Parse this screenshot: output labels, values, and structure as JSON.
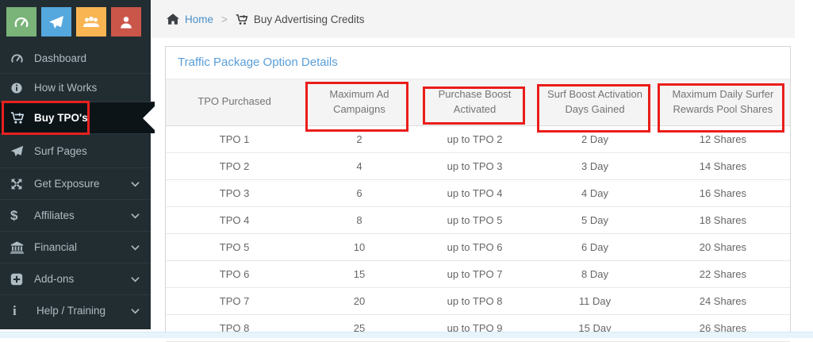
{
  "topbar": {
    "breadcrumb": {
      "home_label": "Home",
      "separator": ">",
      "current_label": "Buy Advertising Credits"
    }
  },
  "quick_icons": [
    {
      "icon": "gauge-icon",
      "color": "#7ab479"
    },
    {
      "icon": "paper-plane-icon",
      "color": "#55a8de"
    },
    {
      "icon": "users-icon",
      "color": "#f8b552"
    },
    {
      "icon": "user-icon",
      "color": "#ca564a"
    }
  ],
  "sidebar": {
    "items": [
      {
        "label": "Dashboard",
        "icon": "gauge-icon",
        "active": false,
        "chevron": false
      },
      {
        "label": "How it Works",
        "icon": "info-circle-icon",
        "active": false,
        "chevron": false
      },
      {
        "label": "Buy TPO's",
        "icon": "cart-plus-icon",
        "active": true,
        "chevron": false,
        "highlighted": true
      },
      {
        "label": "Surf Pages",
        "icon": "paper-plane-icon",
        "active": false,
        "chevron": false
      },
      {
        "label": "Get Exposure",
        "icon": "arrows-icon",
        "active": false,
        "chevron": true
      },
      {
        "label": "Affiliates",
        "icon": "dollar-icon",
        "active": false,
        "chevron": true
      },
      {
        "label": "Financial",
        "icon": "bank-icon",
        "active": false,
        "chevron": true
      },
      {
        "label": "Add-ons",
        "icon": "plus-square-icon",
        "active": false,
        "chevron": true
      },
      {
        "label": "Help / Training",
        "icon": "info-icon",
        "active": false,
        "chevron": true
      }
    ]
  },
  "panel": {
    "title": "Traffic Package Option Details"
  },
  "table": {
    "columns": [
      {
        "label": "TPO Purchased",
        "highlighted": false
      },
      {
        "label": "Maximum Ad Campaigns",
        "highlighted": true
      },
      {
        "label": "Purchase Boost Activated",
        "highlighted": true
      },
      {
        "label": "Surf Boost Activation Days Gained",
        "highlighted": true
      },
      {
        "label": "Maximum Daily Surfer Rewards Pool Shares",
        "highlighted": true
      }
    ],
    "rows": [
      [
        "TPO 1",
        "2",
        "up to TPO 2",
        "2 Day",
        "12 Shares"
      ],
      [
        "TPO 2",
        "4",
        "up to TPO 3",
        "3 Day",
        "14 Shares"
      ],
      [
        "TPO 3",
        "6",
        "up to TPO 4",
        "4 Day",
        "16 Shares"
      ],
      [
        "TPO 4",
        "8",
        "up to TPO 5",
        "5 Day",
        "18 Shares"
      ],
      [
        "TPO 5",
        "10",
        "up to TPO 6",
        "6 Day",
        "20 Shares"
      ],
      [
        "TPO 6",
        "15",
        "up to TPO 7",
        "8 Day",
        "22 Shares"
      ],
      [
        "TPO 7",
        "20",
        "up to TPO 8",
        "11 Day",
        "24 Shares"
      ],
      [
        "TPO 8",
        "25",
        "up to TPO 9",
        "15 Day",
        "26 Shares"
      ]
    ]
  },
  "colors": {
    "sidebar_bg": "#222d32",
    "sidebar_active_bg": "#0d1418",
    "annotation_red": "#e9211e",
    "link_blue": "#4a8fc6",
    "panel_title_blue": "#5a9ed8",
    "bottom_strip_blue": "#e8f4fb"
  }
}
